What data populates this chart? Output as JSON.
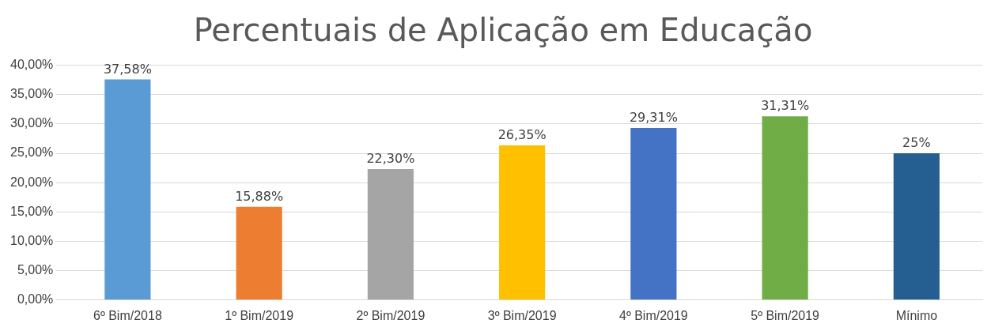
{
  "chart_data": {
    "type": "bar",
    "title": "Percentuais de Aplicação em Educação",
    "categories": [
      "6º Bim/2018",
      "1º Bim/2019",
      "2º Bim/2019",
      "3º Bim/2019",
      "4º Bim/2019",
      "5º Bim/2019",
      "Mínimo"
    ],
    "values": [
      37.58,
      15.88,
      22.3,
      26.35,
      29.31,
      31.31,
      25
    ],
    "colors": [
      "#5b9bd5",
      "#ed7d31",
      "#a5a5a5",
      "#ffc000",
      "#4472c4",
      "#70ad47",
      "#255e91"
    ],
    "value_labels": [
      "37,58%",
      "15,88%",
      "22,30%",
      "26,35%",
      "29,31%",
      "31,31%",
      "25%"
    ],
    "ylim": [
      0,
      40
    ],
    "yticks": [
      {
        "value": 0,
        "label": "0,00%"
      },
      {
        "value": 5,
        "label": "5,00%"
      },
      {
        "value": 10,
        "label": "10,00%"
      },
      {
        "value": 15,
        "label": "15,00%"
      },
      {
        "value": 20,
        "label": "20,00%"
      },
      {
        "value": 25,
        "label": "25,00%"
      },
      {
        "value": 30,
        "label": "30,00%"
      },
      {
        "value": 35,
        "label": "35,00%"
      },
      {
        "value": 40,
        "label": "40,00%"
      }
    ],
    "grid": "y",
    "legend": false
  }
}
